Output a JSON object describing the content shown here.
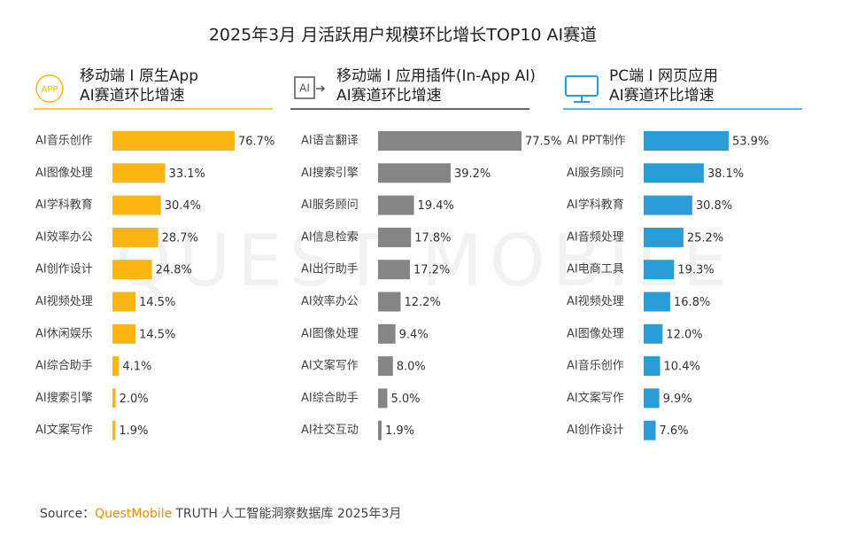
{
  "title": "2025年3月 月活跃用户规模环比增长TOP10 AI赛道",
  "watermark": "QUEST MOBILE",
  "source": {
    "label": "Source：",
    "brand": "QuestMobile",
    "text": "TRUTH 人工智能洞察数据库 2025年3月"
  },
  "chart_data": [
    {
      "type": "bar",
      "icon": "APP",
      "title": [
        "移动端 I 原生App",
        "AI赛道环比增速"
      ],
      "color": "#fbb612",
      "categories": [
        "AI音乐创作",
        "AI图像处理",
        "AI学科教育",
        "AI效率办公",
        "AI创作设计",
        "AI视频处理",
        "AI休闲娱乐",
        "AI综合助手",
        "AI搜索引擎",
        "AI文案写作"
      ],
      "values": [
        76.7,
        33.1,
        30.4,
        28.7,
        24.8,
        14.5,
        14.5,
        4.1,
        2.0,
        1.9
      ],
      "value_labels": [
        "76.7%",
        "33.1%",
        "30.4%",
        "28.7%",
        "24.8%",
        "14.5%",
        "14.5%",
        "4.1%",
        "2.0%",
        "1.9%"
      ]
    },
    {
      "type": "bar",
      "icon": "AI",
      "title": [
        "移动端 I 应用插件(In-App AI)",
        "AI赛道环比增速"
      ],
      "color": "#858585",
      "categories": [
        "AI语言翻译",
        "AI搜索引擎",
        "AI服务顾问",
        "AI信息检索",
        "AI出行助手",
        "AI效率办公",
        "AI图像处理",
        "AI文案写作",
        "AI综合助手",
        "AI社交互动"
      ],
      "values": [
        77.5,
        39.2,
        19.4,
        17.8,
        17.2,
        12.2,
        9.4,
        8.0,
        5.0,
        1.9
      ],
      "value_labels": [
        "77.5%",
        "39.2%",
        "19.4%",
        "17.8%",
        "17.2%",
        "12.2%",
        "9.4%",
        "8.0%",
        "5.0%",
        "1.9%"
      ]
    },
    {
      "type": "bar",
      "icon": "",
      "title": [
        "PC端 I 网页应用",
        "AI赛道环比增速"
      ],
      "color": "#2a9dd6",
      "categories": [
        "AI PPT制作",
        "AI服务顾问",
        "AI学科教育",
        "AI音频处理",
        "AI电商工具",
        "AI视频处理",
        "AI图像处理",
        "AI音乐创作",
        "AI文案写作",
        "AI创作设计"
      ],
      "values": [
        53.9,
        38.1,
        30.8,
        25.2,
        19.3,
        16.8,
        12.0,
        10.4,
        9.9,
        7.6
      ],
      "value_labels": [
        "53.9%",
        "38.1%",
        "30.8%",
        "25.2%",
        "19.3%",
        "16.8%",
        "12.0%",
        "10.4%",
        "9.9%",
        "7.6%"
      ]
    }
  ]
}
